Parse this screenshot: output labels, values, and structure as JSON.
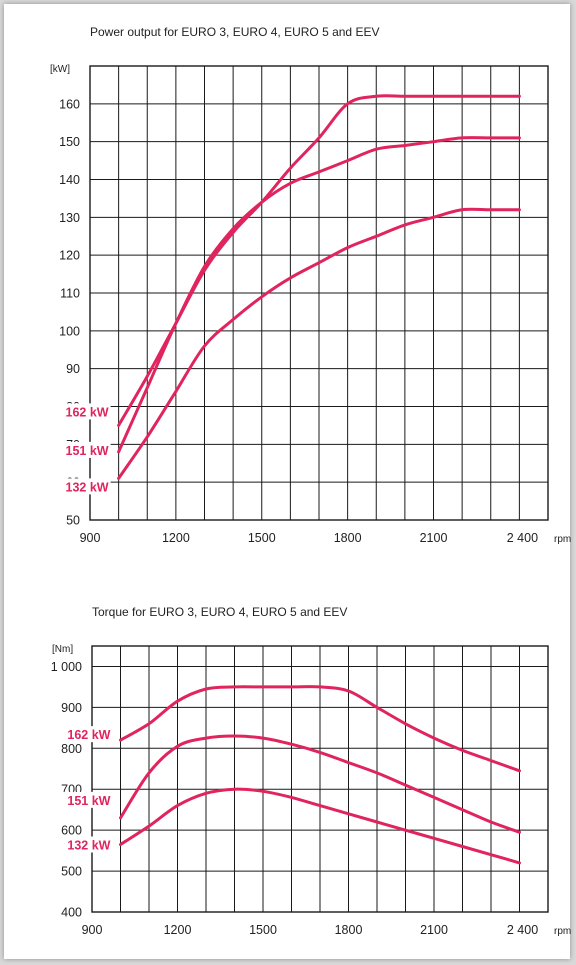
{
  "chart_data": [
    {
      "type": "line",
      "title": "Power output for EURO 3, EURO 4, EURO 5 and EEV",
      "ylabel": "[kW]",
      "xlabel": "rpm",
      "xlim": [
        900,
        2500
      ],
      "ylim": [
        50,
        170
      ],
      "x_ticks": [
        900,
        1200,
        1500,
        1800,
        2100,
        2400
      ],
      "x_tick_labels": [
        "900",
        "1200",
        "1500",
        "1800",
        "2100",
        "2 400"
      ],
      "y_ticks": [
        50,
        60,
        70,
        80,
        90,
        100,
        110,
        120,
        130,
        140,
        150,
        160
      ],
      "y_tick_labels": [
        "50",
        "60",
        "70",
        "80",
        "90",
        "100",
        "110",
        "120",
        "130",
        "140",
        "150",
        "160"
      ],
      "grid": true,
      "line_color": "#e0245e",
      "series": [
        {
          "name": "162 kW",
          "x": [
            1000,
            1100,
            1200,
            1300,
            1400,
            1500,
            1600,
            1700,
            1800,
            1900,
            2000,
            2100,
            2200,
            2300,
            2400
          ],
          "values": [
            75,
            88,
            102,
            116,
            126,
            134,
            143,
            151,
            160,
            162,
            162,
            162,
            162,
            162,
            162
          ]
        },
        {
          "name": "151 kW",
          "x": [
            1000,
            1100,
            1200,
            1300,
            1400,
            1500,
            1600,
            1700,
            1800,
            1900,
            2000,
            2100,
            2200,
            2300,
            2400
          ],
          "values": [
            68,
            85,
            102,
            117,
            127,
            134,
            139,
            142,
            145,
            148,
            149,
            150,
            151,
            151,
            151
          ]
        },
        {
          "name": "132 kW",
          "x": [
            1000,
            1100,
            1200,
            1300,
            1400,
            1500,
            1600,
            1700,
            1800,
            1900,
            2000,
            2100,
            2200,
            2300,
            2400
          ],
          "values": [
            61,
            72,
            84,
            96,
            103,
            109,
            114,
            118,
            122,
            125,
            128,
            130,
            132,
            132,
            132
          ]
        }
      ]
    },
    {
      "type": "line",
      "title": "Torque for EURO 3, EURO 4, EURO 5 and EEV",
      "ylabel": "[Nm]",
      "xlabel": "rpm",
      "xlim": [
        900,
        2500
      ],
      "ylim": [
        400,
        1050
      ],
      "x_ticks": [
        900,
        1200,
        1500,
        1800,
        2100,
        2400
      ],
      "x_tick_labels": [
        "900",
        "1200",
        "1500",
        "1800",
        "2100",
        "2 400"
      ],
      "y_ticks": [
        400,
        500,
        600,
        700,
        800,
        900,
        1000
      ],
      "y_tick_labels": [
        "400",
        "500",
        "600",
        "700",
        "800",
        "900",
        "1 000"
      ],
      "grid": true,
      "line_color": "#e0245e",
      "series": [
        {
          "name": "162 kW",
          "x": [
            1000,
            1100,
            1200,
            1300,
            1400,
            1500,
            1600,
            1700,
            1800,
            1900,
            2000,
            2100,
            2200,
            2300,
            2400
          ],
          "values": [
            820,
            860,
            915,
            945,
            950,
            950,
            950,
            950,
            940,
            900,
            860,
            825,
            795,
            770,
            745
          ]
        },
        {
          "name": "151 kW",
          "x": [
            1000,
            1100,
            1200,
            1300,
            1400,
            1500,
            1600,
            1700,
            1800,
            1900,
            2000,
            2100,
            2200,
            2300,
            2400
          ],
          "values": [
            630,
            740,
            805,
            825,
            830,
            825,
            810,
            790,
            765,
            740,
            710,
            680,
            650,
            620,
            595
          ]
        },
        {
          "name": "132 kW",
          "x": [
            1000,
            1100,
            1200,
            1300,
            1400,
            1500,
            1600,
            1700,
            1800,
            1900,
            2000,
            2100,
            2200,
            2300,
            2400
          ],
          "values": [
            565,
            610,
            660,
            690,
            700,
            695,
            680,
            660,
            640,
            620,
            600,
            580,
            560,
            540,
            520
          ]
        }
      ]
    }
  ]
}
